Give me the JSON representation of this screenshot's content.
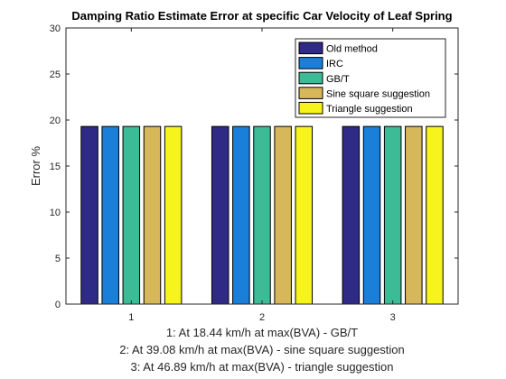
{
  "chart_data": {
    "type": "bar",
    "title": "Damping Ratio Estimate Error at specific Car Velocity of Leaf Spring",
    "ylabel": "Error %",
    "xlabel_lines": [
      "1: At 18.44 km/h at max(BVA) - GB/T",
      "2: At 39.08 km/h at max(BVA) - sine square suggestion",
      "3: At 46.89 km/h at max(BVA) - triangle suggestion"
    ],
    "categories": [
      "1",
      "2",
      "3"
    ],
    "ylim": [
      0,
      30
    ],
    "yticks": [
      "0",
      "5",
      "10",
      "15",
      "20",
      "25",
      "30"
    ],
    "legend_position": "top-right",
    "series": [
      {
        "name": "Old method",
        "color": "#2e2a85",
        "values": [
          19.3,
          19.3,
          19.3
        ]
      },
      {
        "name": "IRC",
        "color": "#1a7fd8",
        "values": [
          19.3,
          19.3,
          19.3
        ]
      },
      {
        "name": "GB/T",
        "color": "#3dbb96",
        "values": [
          19.3,
          19.3,
          19.3
        ]
      },
      {
        "name": "Sine square suggestion",
        "color": "#d6b85a",
        "values": [
          19.3,
          19.3,
          19.3
        ]
      },
      {
        "name": "Triangle suggestion",
        "color": "#f6f41c",
        "values": [
          19.3,
          19.3,
          19.3
        ]
      }
    ]
  }
}
